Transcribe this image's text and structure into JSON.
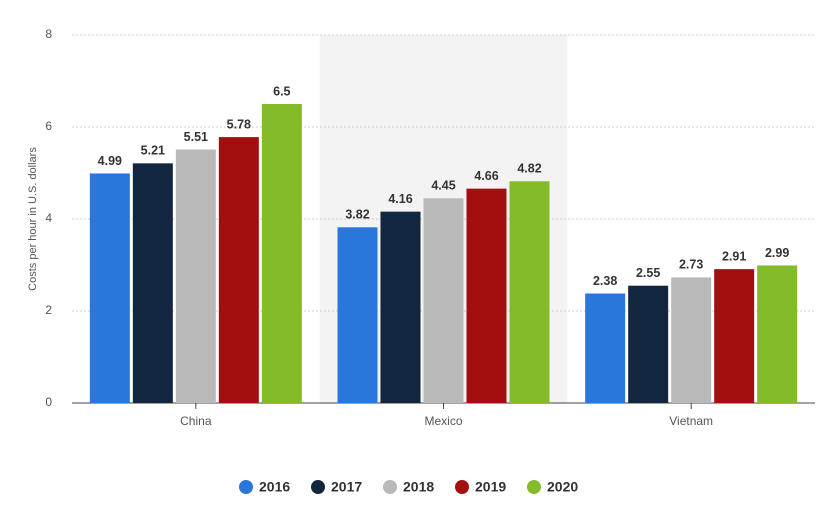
{
  "chart_data": {
    "type": "bar",
    "y_label": "Costs per hour in U.S. dollars",
    "categories": [
      "China",
      "Mexico",
      "Vietnam"
    ],
    "series": [
      {
        "name": "2016",
        "color": "#2a77dc",
        "values": [
          4.99,
          3.82,
          2.38
        ]
      },
      {
        "name": "2017",
        "color": "#12263f",
        "values": [
          5.21,
          4.16,
          2.55
        ]
      },
      {
        "name": "2018",
        "color": "#b9b9b9",
        "values": [
          5.51,
          4.45,
          2.73
        ]
      },
      {
        "name": "2019",
        "color": "#a30e0e",
        "values": [
          5.78,
          4.66,
          2.91
        ]
      },
      {
        "name": "2020",
        "color": "#84bb2b",
        "values": [
          6.5,
          4.82,
          2.99
        ]
      }
    ],
    "ylim": [
      0,
      8
    ],
    "yticks": [
      0,
      2,
      4,
      6,
      8
    ],
    "grid": true
  }
}
